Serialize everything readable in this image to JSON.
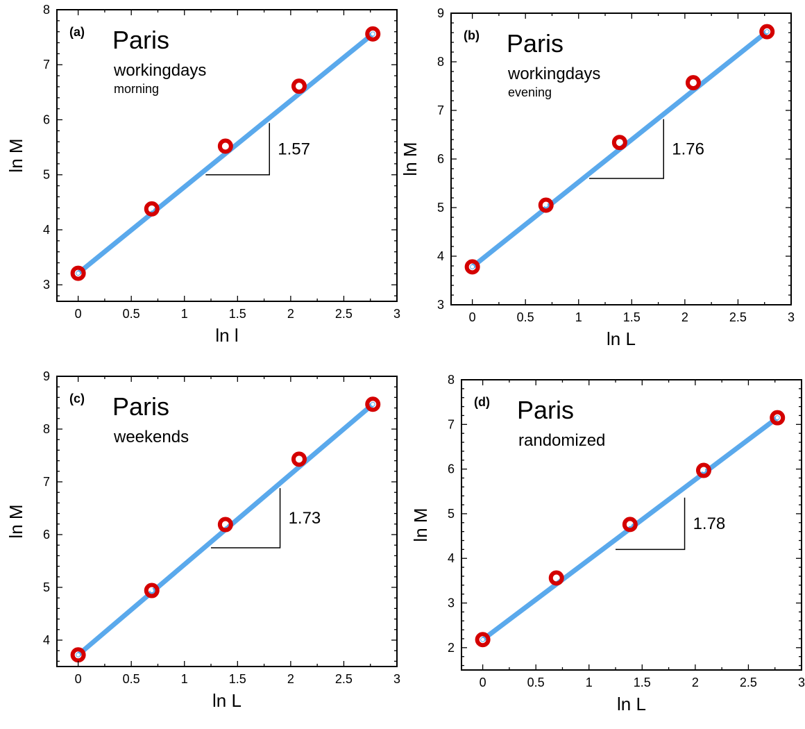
{
  "chart_data": [
    {
      "type": "scatter",
      "panel": "(a)",
      "city": "Paris",
      "subtitle_line1": "workingdays",
      "subtitle_line2": "morning",
      "xlabel": "ln l",
      "ylabel": "ln M",
      "xlim": [
        -0.2,
        3
      ],
      "ylim": [
        2.7,
        8
      ],
      "xticks": [
        "0",
        "0.5",
        "1",
        "1.5",
        "2",
        "2.5",
        "3"
      ],
      "yticks": [
        "3",
        "4",
        "5",
        "6",
        "7",
        "8"
      ],
      "x": [
        0,
        0.693,
        1.386,
        2.079,
        2.773
      ],
      "y": [
        3.21,
        4.38,
        5.52,
        6.61,
        7.56
      ],
      "fit_line": {
        "x": [
          0,
          2.773
        ],
        "y": [
          3.21,
          7.56
        ]
      },
      "slope_label": "1.57",
      "slope_triangle": {
        "x": [
          1.2,
          1.8
        ],
        "y": [
          5.0,
          5.94
        ]
      },
      "grid": false,
      "legend": "none"
    },
    {
      "type": "scatter",
      "panel": "(b)",
      "city": "Paris",
      "subtitle_line1": "workingdays",
      "subtitle_line2": "evening",
      "xlabel": "ln L",
      "ylabel": "ln M",
      "xlim": [
        -0.2,
        3
      ],
      "ylim": [
        3,
        9
      ],
      "xticks": [
        "0",
        "0.5",
        "1",
        "1.5",
        "2",
        "2.5",
        "3"
      ],
      "yticks": [
        "3",
        "4",
        "5",
        "6",
        "7",
        "8",
        "9"
      ],
      "x": [
        0,
        0.693,
        1.386,
        2.079,
        2.773
      ],
      "y": [
        3.78,
        5.05,
        6.34,
        7.57,
        8.62
      ],
      "fit_line": {
        "x": [
          0,
          2.773
        ],
        "y": [
          3.78,
          8.62
        ]
      },
      "slope_label": "1.76",
      "slope_triangle": {
        "x": [
          1.1,
          1.8
        ],
        "y": [
          5.6,
          6.82
        ]
      },
      "grid": false,
      "legend": "none"
    },
    {
      "type": "scatter",
      "panel": "(c)",
      "city": "Paris",
      "subtitle_line1": "weekends",
      "subtitle_line2": "",
      "xlabel": "ln L",
      "ylabel": "ln M",
      "xlim": [
        -0.2,
        3
      ],
      "ylim": [
        3.5,
        9
      ],
      "xticks": [
        "0",
        "0.5",
        "1",
        "1.5",
        "2",
        "2.5",
        "3"
      ],
      "yticks": [
        "4",
        "5",
        "6",
        "7",
        "8",
        "9"
      ],
      "x": [
        0,
        0.693,
        1.386,
        2.079,
        2.773
      ],
      "y": [
        3.72,
        4.94,
        6.19,
        7.43,
        8.47
      ],
      "fit_line": {
        "x": [
          0,
          2.773
        ],
        "y": [
          3.72,
          8.47
        ]
      },
      "slope_label": "1.73",
      "slope_triangle": {
        "x": [
          1.25,
          1.9
        ],
        "y": [
          5.75,
          6.88
        ]
      },
      "grid": false,
      "legend": "none"
    },
    {
      "type": "scatter",
      "panel": "(d)",
      "city": "Paris",
      "subtitle_line1": "randomized",
      "subtitle_line2": "",
      "xlabel": "ln L",
      "ylabel": "ln M",
      "xlim": [
        -0.2,
        3
      ],
      "ylim": [
        1.5,
        8
      ],
      "xticks": [
        "0",
        "0.5",
        "1",
        "1.5",
        "2",
        "2.5",
        "3"
      ],
      "yticks": [
        "2",
        "3",
        "4",
        "5",
        "6",
        "7",
        "8"
      ],
      "x": [
        0,
        0.693,
        1.386,
        2.079,
        2.773
      ],
      "y": [
        2.18,
        3.56,
        4.76,
        5.97,
        7.15
      ],
      "fit_line": {
        "x": [
          0,
          2.773
        ],
        "y": [
          2.18,
          7.15
        ]
      },
      "slope_label": "1.78",
      "slope_triangle": {
        "x": [
          1.25,
          1.9
        ],
        "y": [
          4.2,
          5.36
        ]
      },
      "grid": false,
      "legend": "none"
    }
  ]
}
